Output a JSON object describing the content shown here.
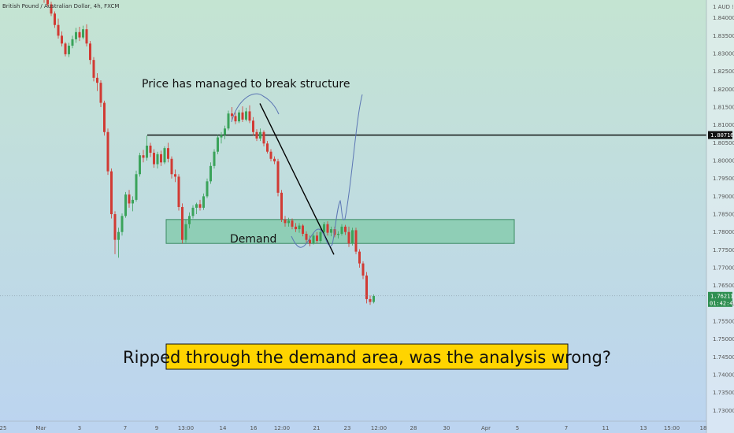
{
  "header": {
    "symbol": "British Pound / Australian Dollar, 4h, FXCM",
    "currency": "AUD"
  },
  "colors": {
    "bg_top": "#c4e4d2",
    "bg_bottom": "#bcd4f0",
    "up": "#3aa35a",
    "down": "#d13a33",
    "demand_fill": "#7fc9a7",
    "demand_stroke": "#3b8a63",
    "callout_bg": "#ffd400",
    "path_blue": "#5c76b4"
  },
  "chart_data": {
    "type": "candlestick",
    "ylim": [
      1.727,
      1.845
    ],
    "y_ticks": [
      "1.84000",
      "1.83500",
      "1.83000",
      "1.82500",
      "1.82000",
      "1.81500",
      "1.81000",
      "1.80500",
      "1.80000",
      "1.79500",
      "1.79000",
      "1.78500",
      "1.78000",
      "1.77500",
      "1.77000",
      "1.76500",
      "1.76000",
      "1.75500",
      "1.75000",
      "1.74500",
      "1.74000",
      "1.73500",
      "1.73000"
    ],
    "x_ticks": [
      "25",
      "Mar",
      "3",
      "7",
      "9",
      "13:00",
      "14",
      "16",
      "12:00",
      "21",
      "23",
      "12:00",
      "28",
      "30",
      "Apr",
      "5",
      "7",
      "11",
      "13",
      "15:00",
      "18"
    ],
    "candles": [
      {
        "o": 1.8455,
        "h": 1.8465,
        "l": 1.8442,
        "c": 1.845
      },
      {
        "o": 1.845,
        "h": 1.8462,
        "l": 1.8432,
        "c": 1.8438
      },
      {
        "o": 1.8438,
        "h": 1.8445,
        "l": 1.8405,
        "c": 1.8412
      },
      {
        "o": 1.8412,
        "h": 1.8418,
        "l": 1.8372,
        "c": 1.838
      },
      {
        "o": 1.838,
        "h": 1.8398,
        "l": 1.8342,
        "c": 1.835
      },
      {
        "o": 1.835,
        "h": 1.8362,
        "l": 1.832,
        "c": 1.8328
      },
      {
        "o": 1.8328,
        "h": 1.8332,
        "l": 1.8292,
        "c": 1.8298
      },
      {
        "o": 1.8298,
        "h": 1.833,
        "l": 1.829,
        "c": 1.8322
      },
      {
        "o": 1.8322,
        "h": 1.835,
        "l": 1.8315,
        "c": 1.834
      },
      {
        "o": 1.834,
        "h": 1.8372,
        "l": 1.833,
        "c": 1.836
      },
      {
        "o": 1.836,
        "h": 1.8375,
        "l": 1.8335,
        "c": 1.8345
      },
      {
        "o": 1.8345,
        "h": 1.8378,
        "l": 1.834,
        "c": 1.8368
      },
      {
        "o": 1.8368,
        "h": 1.8382,
        "l": 1.832,
        "c": 1.8328
      },
      {
        "o": 1.8328,
        "h": 1.8335,
        "l": 1.827,
        "c": 1.8282
      },
      {
        "o": 1.8282,
        "h": 1.829,
        "l": 1.8222,
        "c": 1.8232
      },
      {
        "o": 1.8232,
        "h": 1.8245,
        "l": 1.8195,
        "c": 1.8218
      },
      {
        "o": 1.8218,
        "h": 1.8225,
        "l": 1.815,
        "c": 1.8162
      },
      {
        "o": 1.8162,
        "h": 1.8168,
        "l": 1.807,
        "c": 1.808
      },
      {
        "o": 1.808,
        "h": 1.809,
        "l": 1.796,
        "c": 1.797
      },
      {
        "o": 1.797,
        "h": 1.7978,
        "l": 1.7838,
        "c": 1.785
      },
      {
        "o": 1.785,
        "h": 1.7858,
        "l": 1.7738,
        "c": 1.7778
      },
      {
        "o": 1.7778,
        "h": 1.7812,
        "l": 1.7728,
        "c": 1.78
      },
      {
        "o": 1.78,
        "h": 1.7852,
        "l": 1.779,
        "c": 1.7845
      },
      {
        "o": 1.7845,
        "h": 1.7912,
        "l": 1.784,
        "c": 1.7905
      },
      {
        "o": 1.7905,
        "h": 1.7918,
        "l": 1.7868,
        "c": 1.788
      },
      {
        "o": 1.788,
        "h": 1.79,
        "l": 1.7858,
        "c": 1.789
      },
      {
        "o": 1.789,
        "h": 1.7972,
        "l": 1.7885,
        "c": 1.7962
      },
      {
        "o": 1.7962,
        "h": 1.8022,
        "l": 1.7955,
        "c": 1.8015
      },
      {
        "o": 1.8015,
        "h": 1.803,
        "l": 1.7995,
        "c": 1.8008
      },
      {
        "o": 1.8008,
        "h": 1.807,
        "l": 1.8,
        "c": 1.8042
      },
      {
        "o": 1.8042,
        "h": 1.805,
        "l": 1.801,
        "c": 1.8022
      },
      {
        "o": 1.8022,
        "h": 1.8032,
        "l": 1.798,
        "c": 1.799
      },
      {
        "o": 1.799,
        "h": 1.8025,
        "l": 1.7978,
        "c": 1.8018
      },
      {
        "o": 1.8018,
        "h": 1.8028,
        "l": 1.7985,
        "c": 1.7995
      },
      {
        "o": 1.7995,
        "h": 1.804,
        "l": 1.799,
        "c": 1.8035
      },
      {
        "o": 1.8035,
        "h": 1.805,
        "l": 1.7995,
        "c": 1.8005
      },
      {
        "o": 1.8005,
        "h": 1.8012,
        "l": 1.795,
        "c": 1.7962
      },
      {
        "o": 1.7962,
        "h": 1.7975,
        "l": 1.794,
        "c": 1.7955
      },
      {
        "o": 1.7955,
        "h": 1.7962,
        "l": 1.786,
        "c": 1.787
      },
      {
        "o": 1.787,
        "h": 1.788,
        "l": 1.7768,
        "c": 1.7778
      },
      {
        "o": 1.7778,
        "h": 1.7835,
        "l": 1.777,
        "c": 1.7822
      },
      {
        "o": 1.7822,
        "h": 1.7855,
        "l": 1.781,
        "c": 1.7845
      },
      {
        "o": 1.7845,
        "h": 1.7875,
        "l": 1.7838,
        "c": 1.7868
      },
      {
        "o": 1.7868,
        "h": 1.7882,
        "l": 1.785,
        "c": 1.7878
      },
      {
        "o": 1.7878,
        "h": 1.789,
        "l": 1.786,
        "c": 1.7868
      },
      {
        "o": 1.7868,
        "h": 1.7908,
        "l": 1.7862,
        "c": 1.79
      },
      {
        "o": 1.79,
        "h": 1.795,
        "l": 1.7895,
        "c": 1.7942
      },
      {
        "o": 1.7942,
        "h": 1.7995,
        "l": 1.7935,
        "c": 1.7985
      },
      {
        "o": 1.7985,
        "h": 1.8032,
        "l": 1.7978,
        "c": 1.8025
      },
      {
        "o": 1.8025,
        "h": 1.8072,
        "l": 1.8018,
        "c": 1.8065
      },
      {
        "o": 1.8065,
        "h": 1.808,
        "l": 1.8048,
        "c": 1.8072
      },
      {
        "o": 1.8072,
        "h": 1.8098,
        "l": 1.806,
        "c": 1.809
      },
      {
        "o": 1.809,
        "h": 1.814,
        "l": 1.8085,
        "c": 1.8132
      },
      {
        "o": 1.8132,
        "h": 1.815,
        "l": 1.8112,
        "c": 1.8125
      },
      {
        "o": 1.8125,
        "h": 1.8135,
        "l": 1.8102,
        "c": 1.811
      },
      {
        "o": 1.811,
        "h": 1.8142,
        "l": 1.8105,
        "c": 1.8135
      },
      {
        "o": 1.8135,
        "h": 1.8152,
        "l": 1.8108,
        "c": 1.8115
      },
      {
        "o": 1.8115,
        "h": 1.8148,
        "l": 1.811,
        "c": 1.8138
      },
      {
        "o": 1.8138,
        "h": 1.8155,
        "l": 1.8105,
        "c": 1.8112
      },
      {
        "o": 1.8112,
        "h": 1.8122,
        "l": 1.807,
        "c": 1.808
      },
      {
        "o": 1.808,
        "h": 1.8088,
        "l": 1.8055,
        "c": 1.8062
      },
      {
        "o": 1.8062,
        "h": 1.809,
        "l": 1.8055,
        "c": 1.808
      },
      {
        "o": 1.808,
        "h": 1.8085,
        "l": 1.804,
        "c": 1.8048
      },
      {
        "o": 1.8048,
        "h": 1.8055,
        "l": 1.802,
        "c": 1.8025
      },
      {
        "o": 1.8025,
        "h": 1.8032,
        "l": 1.7998,
        "c": 1.8005
      },
      {
        "o": 1.8005,
        "h": 1.8012,
        "l": 1.799,
        "c": 1.7998
      },
      {
        "o": 1.7998,
        "h": 1.8005,
        "l": 1.79,
        "c": 1.791
      },
      {
        "o": 1.791,
        "h": 1.7918,
        "l": 1.7828,
        "c": 1.7835
      },
      {
        "o": 1.7835,
        "h": 1.7845,
        "l": 1.7815,
        "c": 1.7825
      },
      {
        "o": 1.7825,
        "h": 1.784,
        "l": 1.7815,
        "c": 1.7832
      },
      {
        "o": 1.7832,
        "h": 1.7838,
        "l": 1.7808,
        "c": 1.7815
      },
      {
        "o": 1.7815,
        "h": 1.7825,
        "l": 1.78,
        "c": 1.7808
      },
      {
        "o": 1.7808,
        "h": 1.7825,
        "l": 1.7798,
        "c": 1.7818
      },
      {
        "o": 1.7818,
        "h": 1.7822,
        "l": 1.7788,
        "c": 1.7795
      },
      {
        "o": 1.7795,
        "h": 1.7802,
        "l": 1.777,
        "c": 1.7778
      },
      {
        "o": 1.7778,
        "h": 1.779,
        "l": 1.776,
        "c": 1.7768
      },
      {
        "o": 1.7768,
        "h": 1.7798,
        "l": 1.7765,
        "c": 1.779
      },
      {
        "o": 1.779,
        "h": 1.78,
        "l": 1.7768,
        "c": 1.7775
      },
      {
        "o": 1.7775,
        "h": 1.781,
        "l": 1.7768,
        "c": 1.78
      },
      {
        "o": 1.78,
        "h": 1.7828,
        "l": 1.7795,
        "c": 1.7822
      },
      {
        "o": 1.7822,
        "h": 1.783,
        "l": 1.779,
        "c": 1.7798
      },
      {
        "o": 1.7798,
        "h": 1.7815,
        "l": 1.7788,
        "c": 1.7808
      },
      {
        "o": 1.7808,
        "h": 1.7815,
        "l": 1.7785,
        "c": 1.7792
      },
      {
        "o": 1.7792,
        "h": 1.7802,
        "l": 1.7782,
        "c": 1.7795
      },
      {
        "o": 1.7795,
        "h": 1.7822,
        "l": 1.779,
        "c": 1.7815
      },
      {
        "o": 1.7815,
        "h": 1.782,
        "l": 1.7792,
        "c": 1.78
      },
      {
        "o": 1.78,
        "h": 1.7815,
        "l": 1.7758,
        "c": 1.7768
      },
      {
        "o": 1.7768,
        "h": 1.7812,
        "l": 1.7762,
        "c": 1.7805
      },
      {
        "o": 1.7805,
        "h": 1.7812,
        "l": 1.7738,
        "c": 1.7745
      },
      {
        "o": 1.7745,
        "h": 1.7752,
        "l": 1.77,
        "c": 1.7712
      },
      {
        "o": 1.7712,
        "h": 1.7718,
        "l": 1.7668,
        "c": 1.7678
      },
      {
        "o": 1.7678,
        "h": 1.7688,
        "l": 1.76,
        "c": 1.7612
      },
      {
        "o": 1.7612,
        "h": 1.7622,
        "l": 1.7596,
        "c": 1.7604
      },
      {
        "o": 1.7604,
        "h": 1.7625,
        "l": 1.76,
        "c": 1.7621
      }
    ],
    "horizontal_line": 1.80716,
    "demand_zone": [
      1.7768,
      1.7835
    ],
    "current_price": "1.76211",
    "countdown": "01:42:49",
    "line_label": "1.80716"
  },
  "annotations": {
    "structure_note": "Price has managed to break structure",
    "demand_label": "Demand",
    "callout": "Ripped through the demand area, was the analysis wrong?"
  }
}
